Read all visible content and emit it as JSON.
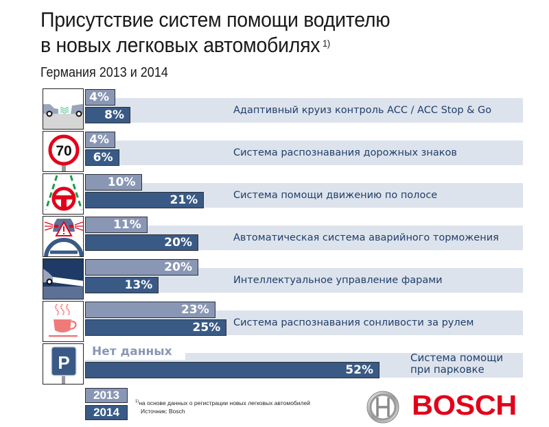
{
  "header": {
    "title_line1": "Присутствие систем помощи водителю",
    "title_line2": "в новых легковых автомобилях",
    "title_footnote_marker": "1)",
    "subtitle": "Германия 2013 и 2014"
  },
  "chart_data": {
    "type": "bar",
    "orientation": "horizontal",
    "title": "Присутствие систем помощи водителю в новых легковых автомобилях",
    "subtitle": "Германия 2013 и 2014",
    "unit": "%",
    "categories": [
      "Адаптивный круиз контроль ACC / ACC Stop & Go",
      "Система распознавания дорожных знаков",
      "Система помощи движению по полосе",
      "Автоматическая система аварийного торможения",
      "Интеллектуальное управление фарами",
      "Система распознавания сонливости за рулем",
      "Система помощи при парковке"
    ],
    "series": [
      {
        "name": "2013",
        "color": "#8a97b4",
        "values": [
          4,
          4,
          10,
          11,
          20,
          23,
          null
        ],
        "labels": [
          "4%",
          "4%",
          "10%",
          "11%",
          "20%",
          "23%",
          "Нет данных"
        ]
      },
      {
        "name": "2014",
        "color": "#3a5a86",
        "values": [
          8,
          6,
          21,
          20,
          13,
          25,
          52
        ],
        "labels": [
          "8%",
          "6%",
          "21%",
          "20%",
          "13%",
          "25%",
          "52%"
        ]
      }
    ],
    "legend": [
      "2013",
      "2014"
    ],
    "legend_position": "bottom-left",
    "no_data_label": "Нет данных"
  },
  "rows": [
    {
      "icon": "adaptive-cruise-control-icon",
      "label": "Адаптивный круиз контроль ACC / ACC Stop & Go"
    },
    {
      "icon": "speed-limit-70-sign-icon",
      "sign_text": "70",
      "label": "Система распознавания дорожных знаков"
    },
    {
      "icon": "lane-assist-icon",
      "label": "Система помощи движению по полосе"
    },
    {
      "icon": "emergency-braking-icon",
      "label": "Автоматическая система аварийного торможения"
    },
    {
      "icon": "headlight-control-icon",
      "label": "Интеллектуальное управление фарами"
    },
    {
      "icon": "drowsiness-coffee-icon",
      "label": "Система распознавания сонливости за рулем"
    },
    {
      "icon": "parking-sign-icon",
      "sign_text": "P",
      "label_line1": "Система помощи",
      "label_line2": "при парковке"
    }
  ],
  "legend": {
    "y2013": "2013",
    "y2014": "2014"
  },
  "footnote": {
    "marker": "1)",
    "text": "на основе данных о регистрации новых легковых автомобилей",
    "source": "Источник: Bosch"
  },
  "brand": {
    "name": "BOSCH",
    "color": "#e2001a"
  },
  "colors": {
    "bar2013": "#8a97b4",
    "bar2014": "#3a5a86",
    "row_bg": "#dde3ec",
    "label_text": "#1f3e6b"
  }
}
